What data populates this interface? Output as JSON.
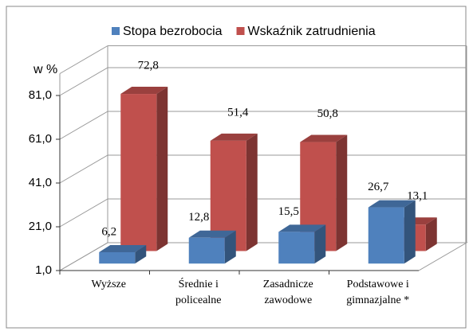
{
  "chart_data": {
    "type": "bar3d",
    "y_axis_label": "w %",
    "categories": [
      "Wyższe",
      "Średnie i\npolicealne",
      "Zasadnicze\nzawodowe",
      "Podstawowe i\ngimnazjalne *"
    ],
    "series": [
      {
        "name": "Stopa bezrobocia",
        "color": "#4f81bd",
        "values": [
          6.2,
          12.8,
          15.5,
          26.7
        ],
        "value_labels": [
          "6,2",
          "12,8",
          "15,5",
          "26,7"
        ]
      },
      {
        "name": "Wskaźnik zatrudnienia",
        "color": "#c0504d",
        "values": [
          72.8,
          51.4,
          50.8,
          13.1
        ],
        "value_labels": [
          "72,8",
          "51,4",
          "50,8",
          "13,1"
        ]
      }
    ],
    "ylim": [
      1,
      91
    ],
    "yticks": [
      {
        "value": 1,
        "label": "1,0"
      },
      {
        "value": 21,
        "label": "21,0"
      },
      {
        "value": 41,
        "label": "41,0"
      },
      {
        "value": 61,
        "label": "61,0"
      },
      {
        "value": 81,
        "label": "81,0"
      }
    ],
    "grid": true
  }
}
